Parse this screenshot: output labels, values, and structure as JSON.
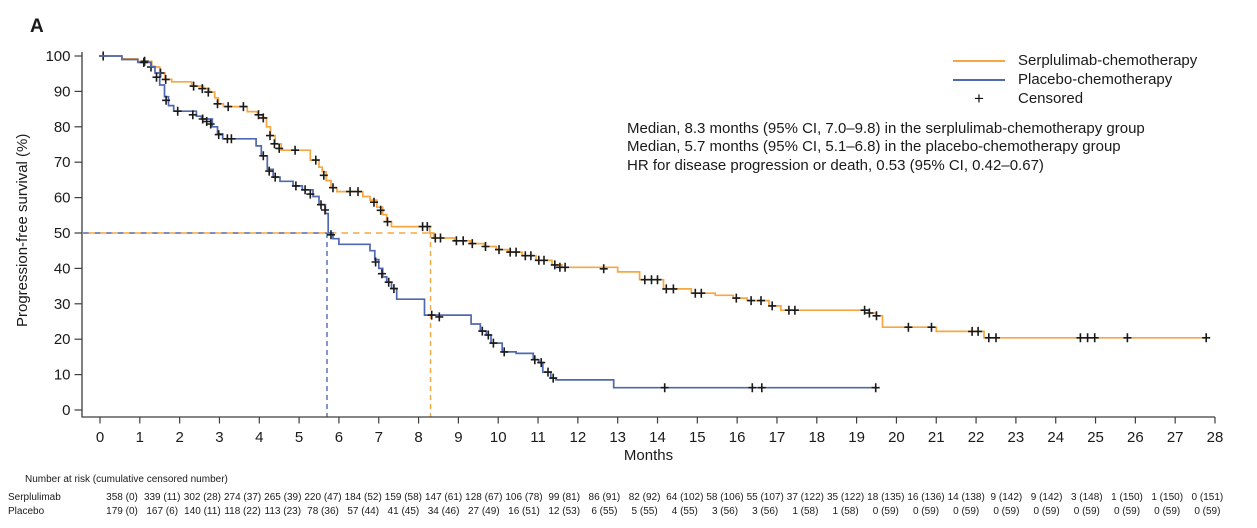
{
  "panel_label": "A",
  "colors": {
    "serplulimab": "#F6A742",
    "placebo": "#5068AE",
    "censor": "#1a1a1a",
    "axis": "#3d3d3d",
    "text": "#1a1a1a"
  },
  "legend": [
    {
      "label": "Serplulimab-chemotherapy",
      "type": "line",
      "color_key": "serplulimab"
    },
    {
      "label": "Placebo-chemotherapy",
      "type": "line",
      "color_key": "placebo"
    },
    {
      "label": "Censored",
      "type": "plus"
    }
  ],
  "annotations": [
    "Median, 8.3 months (95% CI, 7.0–9.8) in the serplulimab-chemotherapy group",
    "Median, 5.7 months (95% CI, 5.1–6.8) in the placebo-chemotherapy group",
    "HR for disease progression or death, 0.53 (95% CI, 0.42–0.67)"
  ],
  "chart_data": {
    "type": "line",
    "subtype": "kaplan-meier-step",
    "title": "",
    "xlabel": "Months",
    "ylabel": "Progression-free survival (%)",
    "xlim": [
      0,
      28
    ],
    "ylim": [
      0,
      100
    ],
    "grid": false,
    "legend_position": "top-right",
    "x_ticks": [
      0,
      1,
      2,
      3,
      4,
      5,
      6,
      7,
      8,
      9,
      10,
      11,
      12,
      13,
      14,
      15,
      16,
      17,
      18,
      19,
      20,
      21,
      22,
      23,
      24,
      25,
      26,
      27,
      28
    ],
    "y_ticks": [
      0,
      10,
      20,
      30,
      40,
      50,
      60,
      70,
      80,
      90,
      100
    ],
    "median_reference_pct": 50,
    "medians": [
      {
        "series": "Placebo-chemotherapy",
        "months": 5.7,
        "color_key": "placebo"
      },
      {
        "series": "Serplulimab-chemotherapy",
        "months": 8.3,
        "color_key": "serplulimab"
      }
    ],
    "series": [
      {
        "name": "Serplulimab-chemotherapy",
        "color_key": "serplulimab",
        "steps": [
          [
            0,
            100
          ],
          [
            0.55,
            99.2
          ],
          [
            0.95,
            98.5
          ],
          [
            1.3,
            96.9
          ],
          [
            1.5,
            95.2
          ],
          [
            1.63,
            93.4
          ],
          [
            1.8,
            92.7
          ],
          [
            2.3,
            91.5
          ],
          [
            2.6,
            90.8
          ],
          [
            2.75,
            89.8
          ],
          [
            2.88,
            88.2
          ],
          [
            2.97,
            86.5
          ],
          [
            3.1,
            85.7
          ],
          [
            3.7,
            84.3
          ],
          [
            3.95,
            83.4
          ],
          [
            4.08,
            82.5
          ],
          [
            4.18,
            80.0
          ],
          [
            4.28,
            77.5
          ],
          [
            4.4,
            75.2
          ],
          [
            4.55,
            73.4
          ],
          [
            5.28,
            70.6
          ],
          [
            5.5,
            68.6
          ],
          [
            5.58,
            67.3
          ],
          [
            5.68,
            64.8
          ],
          [
            5.8,
            62.8
          ],
          [
            5.95,
            61.7
          ],
          [
            6.6,
            60.3
          ],
          [
            6.78,
            59.3
          ],
          [
            6.95,
            57.3
          ],
          [
            7.1,
            55.2
          ],
          [
            7.2,
            53.2
          ],
          [
            7.32,
            51.8
          ],
          [
            8.28,
            50.0
          ],
          [
            8.38,
            48.6
          ],
          [
            8.9,
            47.8
          ],
          [
            9.3,
            47.0
          ],
          [
            9.65,
            46.2
          ],
          [
            9.95,
            45.3
          ],
          [
            10.25,
            44.6
          ],
          [
            10.6,
            43.6
          ],
          [
            10.95,
            42.3
          ],
          [
            11.35,
            41.0
          ],
          [
            11.6,
            40.3
          ],
          [
            13.0,
            39.0
          ],
          [
            13.55,
            36.8
          ],
          [
            14.15,
            34.2
          ],
          [
            14.85,
            33.0
          ],
          [
            15.45,
            32.4
          ],
          [
            15.9,
            31.6
          ],
          [
            16.25,
            30.9
          ],
          [
            16.8,
            29.4
          ],
          [
            17.1,
            28.2
          ],
          [
            19.3,
            27.4
          ],
          [
            19.48,
            26.6
          ],
          [
            19.65,
            23.4
          ],
          [
            21.0,
            22.2
          ],
          [
            22.2,
            20.4
          ],
          [
            27.8,
            20.4
          ]
        ],
        "censors": [
          [
            0.08,
            100
          ],
          [
            1.12,
            98.5
          ],
          [
            1.28,
            96.9
          ],
          [
            1.52,
            95.2
          ],
          [
            1.65,
            93.4
          ],
          [
            2.35,
            91.5
          ],
          [
            2.57,
            90.8
          ],
          [
            2.72,
            89.8
          ],
          [
            2.95,
            86.5
          ],
          [
            3.22,
            85.7
          ],
          [
            3.6,
            85.7
          ],
          [
            3.98,
            83.4
          ],
          [
            4.1,
            82.5
          ],
          [
            4.27,
            77.5
          ],
          [
            4.38,
            75.2
          ],
          [
            4.5,
            73.9
          ],
          [
            4.9,
            73.4
          ],
          [
            5.42,
            70.6
          ],
          [
            5.62,
            66.3
          ],
          [
            5.85,
            62.8
          ],
          [
            6.28,
            61.7
          ],
          [
            6.48,
            61.7
          ],
          [
            6.88,
            58.7
          ],
          [
            7.05,
            56.4
          ],
          [
            7.22,
            53.2
          ],
          [
            8.1,
            51.8
          ],
          [
            8.22,
            51.8
          ],
          [
            8.42,
            48.6
          ],
          [
            8.55,
            48.6
          ],
          [
            8.95,
            47.8
          ],
          [
            9.12,
            47.8
          ],
          [
            9.35,
            47.0
          ],
          [
            9.68,
            46.2
          ],
          [
            10.02,
            45.3
          ],
          [
            10.3,
            44.6
          ],
          [
            10.45,
            44.6
          ],
          [
            10.68,
            43.6
          ],
          [
            10.82,
            43.6
          ],
          [
            11.02,
            42.3
          ],
          [
            11.15,
            42.3
          ],
          [
            11.42,
            41.0
          ],
          [
            11.55,
            40.3
          ],
          [
            11.68,
            40.3
          ],
          [
            12.65,
            39.9
          ],
          [
            13.68,
            36.8
          ],
          [
            13.85,
            36.8
          ],
          [
            14.0,
            36.8
          ],
          [
            14.22,
            34.2
          ],
          [
            14.4,
            34.2
          ],
          [
            14.95,
            33.0
          ],
          [
            15.1,
            33.0
          ],
          [
            15.98,
            31.6
          ],
          [
            16.35,
            30.9
          ],
          [
            16.6,
            30.9
          ],
          [
            16.88,
            29.4
          ],
          [
            17.3,
            28.2
          ],
          [
            17.45,
            28.2
          ],
          [
            19.2,
            28.2
          ],
          [
            19.32,
            27.4
          ],
          [
            19.5,
            26.6
          ],
          [
            20.3,
            23.4
          ],
          [
            20.88,
            23.4
          ],
          [
            21.9,
            22.2
          ],
          [
            22.05,
            22.2
          ],
          [
            22.32,
            20.4
          ],
          [
            22.5,
            20.4
          ],
          [
            24.62,
            20.4
          ],
          [
            24.8,
            20.4
          ],
          [
            24.98,
            20.4
          ],
          [
            25.8,
            20.4
          ],
          [
            27.78,
            20.4
          ]
        ]
      },
      {
        "name": "Placebo-chemotherapy",
        "color_key": "placebo",
        "steps": [
          [
            0,
            100
          ],
          [
            0.55,
            99.0
          ],
          [
            0.95,
            98.2
          ],
          [
            1.28,
            97.0
          ],
          [
            1.38,
            95.2
          ],
          [
            1.5,
            91.8
          ],
          [
            1.62,
            88.5
          ],
          [
            1.72,
            86.0
          ],
          [
            1.85,
            84.4
          ],
          [
            2.42,
            83.0
          ],
          [
            2.55,
            82.2
          ],
          [
            2.82,
            80.0
          ],
          [
            2.95,
            78.0
          ],
          [
            3.08,
            76.6
          ],
          [
            3.92,
            74.6
          ],
          [
            4.05,
            71.8
          ],
          [
            4.2,
            68.0
          ],
          [
            4.35,
            65.8
          ],
          [
            4.52,
            64.6
          ],
          [
            4.85,
            63.3
          ],
          [
            5.08,
            62.2
          ],
          [
            5.35,
            60.3
          ],
          [
            5.5,
            58.0
          ],
          [
            5.66,
            55.5
          ],
          [
            5.73,
            50.0
          ],
          [
            5.85,
            48.4
          ],
          [
            6.0,
            46.8
          ],
          [
            6.78,
            45.0
          ],
          [
            6.9,
            42.5
          ],
          [
            7.0,
            40.0
          ],
          [
            7.1,
            37.6
          ],
          [
            7.2,
            36.1
          ],
          [
            7.32,
            34.3
          ],
          [
            7.45,
            31.3
          ],
          [
            8.15,
            26.8
          ],
          [
            9.32,
            24.3
          ],
          [
            9.55,
            22.3
          ],
          [
            9.7,
            21.2
          ],
          [
            9.82,
            18.9
          ],
          [
            10.1,
            16.4
          ],
          [
            10.45,
            16.0
          ],
          [
            10.88,
            14.2
          ],
          [
            11.02,
            13.4
          ],
          [
            11.12,
            10.7
          ],
          [
            11.32,
            9.0
          ],
          [
            11.45,
            8.5
          ],
          [
            12.9,
            6.3
          ],
          [
            19.5,
            6.3
          ]
        ],
        "censors": [
          [
            1.1,
            98.2
          ],
          [
            1.42,
            94.0
          ],
          [
            1.66,
            87.5
          ],
          [
            1.95,
            84.4
          ],
          [
            2.33,
            83.4
          ],
          [
            2.58,
            82.2
          ],
          [
            2.68,
            81.5
          ],
          [
            2.78,
            80.8
          ],
          [
            2.98,
            77.8
          ],
          [
            3.2,
            76.6
          ],
          [
            3.3,
            76.6
          ],
          [
            4.1,
            71.8
          ],
          [
            4.25,
            67.5
          ],
          [
            4.4,
            65.8
          ],
          [
            4.92,
            63.3
          ],
          [
            5.15,
            62.2
          ],
          [
            5.28,
            61.0
          ],
          [
            5.55,
            58.0
          ],
          [
            5.65,
            56.5
          ],
          [
            5.8,
            49.5
          ],
          [
            6.92,
            41.8
          ],
          [
            7.08,
            38.5
          ],
          [
            7.25,
            36.1
          ],
          [
            7.38,
            34.3
          ],
          [
            8.33,
            26.8
          ],
          [
            8.52,
            26.3
          ],
          [
            9.6,
            22.3
          ],
          [
            9.75,
            21.2
          ],
          [
            9.88,
            18.9
          ],
          [
            10.15,
            16.4
          ],
          [
            10.92,
            14.2
          ],
          [
            11.08,
            13.4
          ],
          [
            11.25,
            10.7
          ],
          [
            11.38,
            9.0
          ],
          [
            14.18,
            6.3
          ],
          [
            16.38,
            6.3
          ],
          [
            16.62,
            6.3
          ],
          [
            19.48,
            6.3
          ]
        ]
      }
    ]
  },
  "risk_table": {
    "header": "Number at risk (cumulative censored number)",
    "rows": [
      {
        "label": "Serplulimab",
        "values": [
          "358 (0)",
          "339 (11)",
          "302 (28)",
          "274 (37)",
          "265 (39)",
          "220 (47)",
          "184 (52)",
          "159 (58)",
          "147 (61)",
          "128 (67)",
          "106 (78)",
          "99 (81)",
          "86 (91)",
          "82 (92)",
          "64 (102)",
          "58 (106)",
          "55 (107)",
          "37 (122)",
          "35 (122)",
          "18 (135)",
          "16 (136)",
          "14 (138)",
          "9 (142)",
          "9 (142)",
          "3 (148)",
          "1 (150)",
          "1 (150)",
          "0 (151)"
        ]
      },
      {
        "label": "Placebo",
        "values": [
          "179 (0)",
          "167 (6)",
          "140 (11)",
          "118 (22)",
          "113 (23)",
          "78 (36)",
          "57 (44)",
          "41 (45)",
          "34 (46)",
          "27 (49)",
          "16 (51)",
          "12 (53)",
          "6 (55)",
          "5 (55)",
          "4 (55)",
          "3 (56)",
          "3 (56)",
          "1 (58)",
          "1 (58)",
          "0 (59)",
          "0 (59)",
          "0 (59)",
          "0 (59)",
          "0 (59)",
          "0 (59)",
          "0 (59)",
          "0 (59)",
          "0 (59)"
        ]
      }
    ]
  }
}
